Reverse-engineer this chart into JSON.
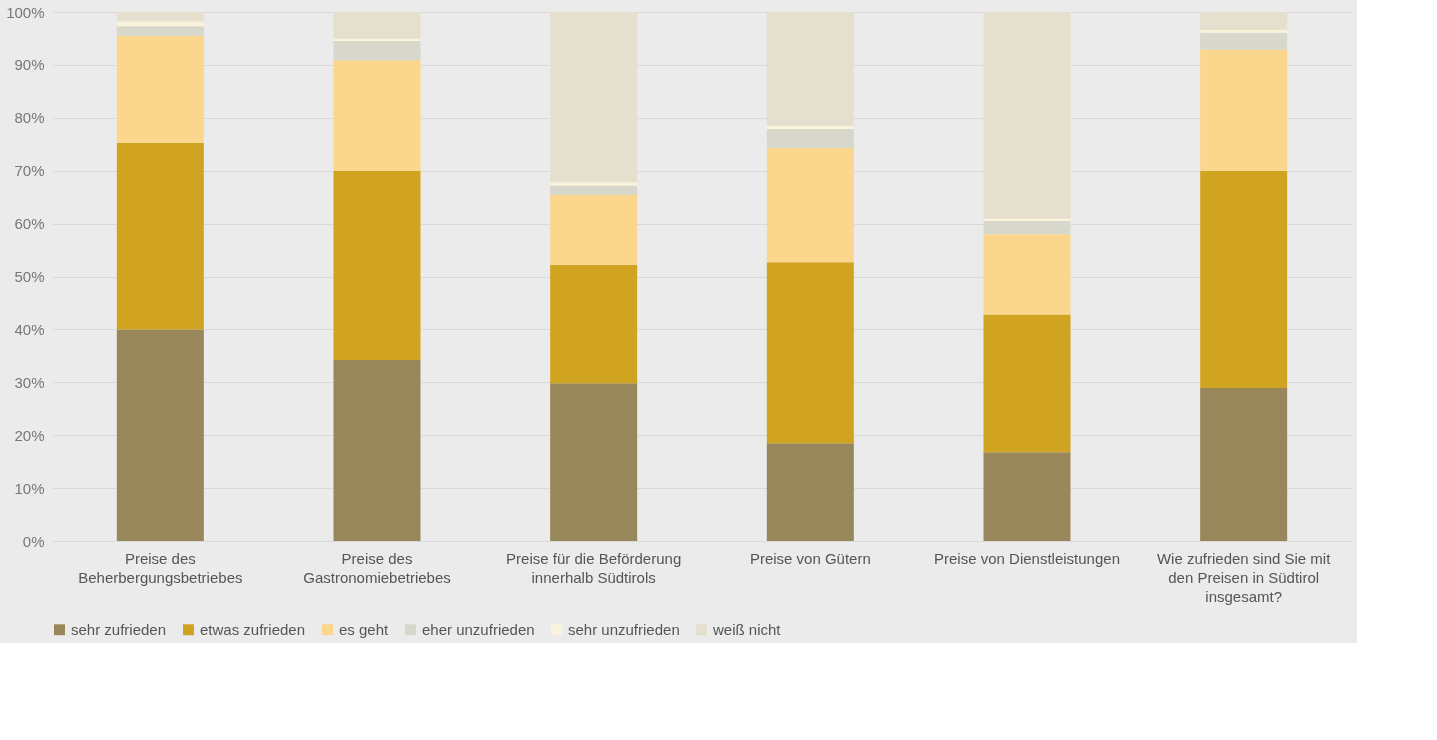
{
  "chart_data": {
    "type": "bar",
    "stacked": true,
    "categories": [
      "Preise des\nBeherbergungsbetriebes",
      "Preise des\nGastronomiebetriebes",
      "Preise für die Beförderung\ninnerhalb Südtirols",
      "Preise von Gütern",
      "Preise von Dienstleistungen",
      "Wie zufrieden sind Sie mit\nden Preisen in Südtirol\ninsgesamt?"
    ],
    "series": [
      {
        "name": "sehr zufrieden",
        "color": "#98875a",
        "values": [
          40.0,
          34.2,
          29.8,
          18.5,
          16.8,
          28.9
        ]
      },
      {
        "name": "etwas zufrieden",
        "color": "#d0a321",
        "values": [
          35.3,
          35.8,
          22.4,
          34.2,
          26.0,
          41.1
        ]
      },
      {
        "name": "es geht",
        "color": "#fbd78e",
        "values": [
          20.2,
          20.9,
          13.2,
          21.6,
          15.2,
          22.9
        ]
      },
      {
        "name": "eher unzufrieden",
        "color": "#d8d7cb",
        "values": [
          1.8,
          3.6,
          1.8,
          3.6,
          2.5,
          3.2
        ]
      },
      {
        "name": "sehr unzufrieden",
        "color": "#fbf3d9",
        "values": [
          0.9,
          0.5,
          0.6,
          0.6,
          0.4,
          0.5
        ]
      },
      {
        "name": "weiß nicht",
        "color": "#e5dfcd",
        "values": [
          1.8,
          5.0,
          32.2,
          21.5,
          39.1,
          3.4
        ]
      }
    ],
    "ylim": [
      0,
      100
    ],
    "yticks": [
      {
        "value": 0,
        "label": "0%"
      },
      {
        "value": 10,
        "label": "10%"
      },
      {
        "value": 20,
        "label": "20%"
      },
      {
        "value": 30,
        "label": "30%"
      },
      {
        "value": 40,
        "label": "40%"
      },
      {
        "value": 50,
        "label": "50%"
      },
      {
        "value": 60,
        "label": "60%"
      },
      {
        "value": 70,
        "label": "70%"
      },
      {
        "value": 80,
        "label": "80%"
      },
      {
        "value": 90,
        "label": "90%"
      },
      {
        "value": 100,
        "label": "100%"
      }
    ],
    "grid": "y",
    "legend": "bottom"
  }
}
